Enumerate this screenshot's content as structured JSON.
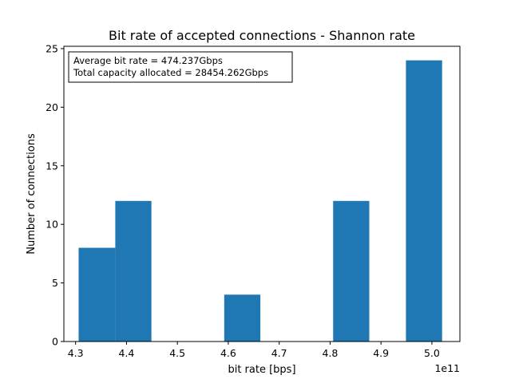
{
  "chart_data": {
    "type": "bar",
    "title": "Bit rate of accepted connections - Shannon rate",
    "xlabel": "bit rate [bps]",
    "ylabel": "Number of connections",
    "x_offset_label": "1e11",
    "x_unit_scale": 100000000000.0,
    "xlim": [
      4.277,
      5.055
    ],
    "ylim": [
      0,
      25.2
    ],
    "xticks": [
      4.3,
      4.4,
      4.5,
      4.6,
      4.7,
      4.8,
      4.9,
      5.0
    ],
    "xtick_labels": [
      "4.3",
      "4.4",
      "4.5",
      "4.6",
      "4.7",
      "4.8",
      "4.9",
      "5.0"
    ],
    "yticks": [
      0,
      5,
      10,
      15,
      20,
      25
    ],
    "ytick_labels": [
      "0",
      "5",
      "10",
      "15",
      "20",
      "25"
    ],
    "bins": [
      {
        "start": 4.306,
        "end": 4.378,
        "count": 8
      },
      {
        "start": 4.378,
        "end": 4.449,
        "count": 12
      },
      {
        "start": 4.449,
        "end": 4.52,
        "count": 0
      },
      {
        "start": 4.52,
        "end": 4.592,
        "count": 0
      },
      {
        "start": 4.592,
        "end": 4.663,
        "count": 4
      },
      {
        "start": 4.663,
        "end": 4.735,
        "count": 0
      },
      {
        "start": 4.735,
        "end": 4.806,
        "count": 0
      },
      {
        "start": 4.806,
        "end": 4.877,
        "count": 12
      },
      {
        "start": 4.877,
        "end": 4.949,
        "count": 0
      },
      {
        "start": 4.949,
        "end": 5.02,
        "count": 24
      }
    ],
    "bar_color": "#1f77b4",
    "grid": false,
    "annotation": {
      "lines": [
        "Average bit rate = 474.237Gbps",
        "Total capacity allocated = 28454.262Gbps"
      ],
      "placement": "top-left"
    }
  }
}
